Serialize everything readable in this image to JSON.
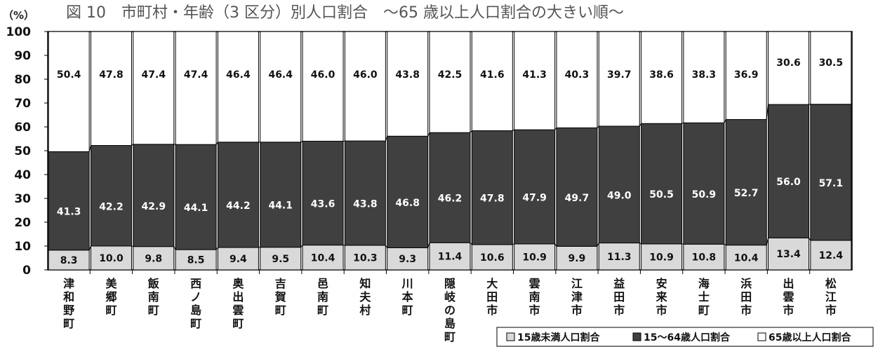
{
  "colors": {
    "young": "#d9d9d9",
    "working": "#404040",
    "elderly": "#ffffff",
    "outline": "#000000"
  },
  "chart_data": {
    "type": "bar",
    "stacked": true,
    "title": "図 10　市町村・年齢（3 区分）別人口割合　～65 歳以上人口割合の大きい順～",
    "ylabel": "（%）",
    "ylim": [
      0,
      100
    ],
    "yticks": [
      "0",
      "10",
      "20",
      "30",
      "40",
      "50",
      "60",
      "70",
      "80",
      "90",
      "100"
    ],
    "categories": [
      "津和野町",
      "美郷町",
      "飯南町",
      "西ノ島町",
      "奥出雲町",
      "吉賀町",
      "邑南町",
      "知夫村",
      "川本町",
      "隠岐の島町",
      "大田市",
      "雲南市",
      "江津市",
      "益田市",
      "安来市",
      "海士町",
      "浜田市",
      "出雲市",
      "松江市"
    ],
    "series": [
      {
        "name": "15歳未満人口割合",
        "values": [
          8.3,
          10.0,
          9.8,
          8.5,
          9.4,
          9.5,
          10.4,
          10.3,
          9.3,
          11.4,
          10.6,
          10.9,
          9.9,
          11.3,
          10.9,
          10.8,
          10.4,
          13.4,
          12.4
        ]
      },
      {
        "name": "15～64歳人口割合",
        "values": [
          41.3,
          42.2,
          42.9,
          44.1,
          44.2,
          44.1,
          43.6,
          43.8,
          46.8,
          46.2,
          47.8,
          47.9,
          49.7,
          49.0,
          50.5,
          50.9,
          52.7,
          56.0,
          57.1
        ]
      },
      {
        "name": "65歳以上人口割合",
        "values": [
          50.4,
          47.8,
          47.4,
          47.4,
          46.4,
          46.4,
          46.0,
          46.0,
          43.8,
          42.5,
          41.6,
          41.3,
          40.3,
          39.7,
          38.6,
          38.3,
          36.9,
          30.6,
          30.5
        ]
      }
    ],
    "value_labels": [
      [
        "8.3",
        "10.0",
        "9.8",
        "8.5",
        "9.4",
        "9.5",
        "10.4",
        "10.3",
        "9.3",
        "11.4",
        "10.6",
        "10.9",
        "9.9",
        "11.3",
        "10.9",
        "10.8",
        "10.4",
        "13.4",
        "12.4"
      ],
      [
        "41.3",
        "42.2",
        "42.9",
        "44.1",
        "44.2",
        "44.1",
        "43.6",
        "43.8",
        "46.8",
        "46.2",
        "47.8",
        "47.9",
        "49.7",
        "49.0",
        "50.5",
        "50.9",
        "52.7",
        "56.0",
        "57.1"
      ],
      [
        "50.4",
        "47.8",
        "47.4",
        "47.4",
        "46.4",
        "46.4",
        "46.0",
        "46.0",
        "43.8",
        "42.5",
        "41.6",
        "41.3",
        "40.3",
        "39.7",
        "38.6",
        "38.3",
        "36.9",
        "30.6",
        "30.5"
      ]
    ],
    "legend": {
      "placement": "bottom-right",
      "items": [
        "15歳未満人口割合",
        "15～64歳人口割合",
        "65歳以上人口割合"
      ]
    },
    "grid": false
  }
}
